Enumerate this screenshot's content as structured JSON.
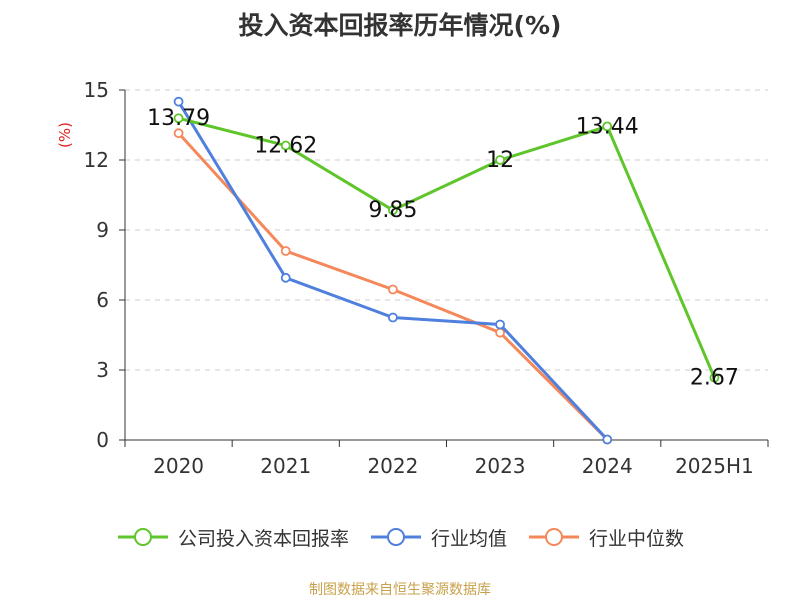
{
  "title": "投入资本回报率历年情况(%)",
  "unit_label": "(%)",
  "source": "制图数据来自恒生聚源数据库",
  "colors": {
    "company": "#5ec52b",
    "industry_avg": "#4f80de",
    "industry_median": "#f5885a",
    "unit": "#e02020",
    "source": "#c7a14a",
    "grid": "#cccccc",
    "axis": "#333333"
  },
  "legend": [
    {
      "label": "公司投入资本回报率",
      "color_key": "company"
    },
    {
      "label": "行业均值",
      "color_key": "industry_avg"
    },
    {
      "label": "行业中位数",
      "color_key": "industry_median"
    }
  ],
  "chart_data": {
    "type": "line",
    "title": "投入资本回报率历年情况(%)",
    "categories": [
      "2020",
      "2021",
      "2022",
      "2023",
      "2024",
      "2025H1"
    ],
    "ylim": [
      0,
      15
    ],
    "yticks": [
      0,
      3,
      6,
      9,
      12,
      15
    ],
    "grid": true,
    "legend_position": "bottom",
    "series": [
      {
        "name": "公司投入资本回报率",
        "color_key": "company",
        "values": [
          13.79,
          12.62,
          9.85,
          12,
          13.44,
          2.67
        ],
        "labels": [
          "13.79",
          "12.62",
          "9.85",
          "12",
          "13.44",
          "2.67"
        ]
      },
      {
        "name": "行业均值",
        "color_key": "industry_avg",
        "values": [
          14.5,
          6.95,
          5.25,
          4.95,
          0.02,
          null
        ]
      },
      {
        "name": "行业中位数",
        "color_key": "industry_median",
        "values": [
          13.15,
          8.1,
          6.45,
          4.6,
          0.02,
          null
        ]
      }
    ]
  }
}
